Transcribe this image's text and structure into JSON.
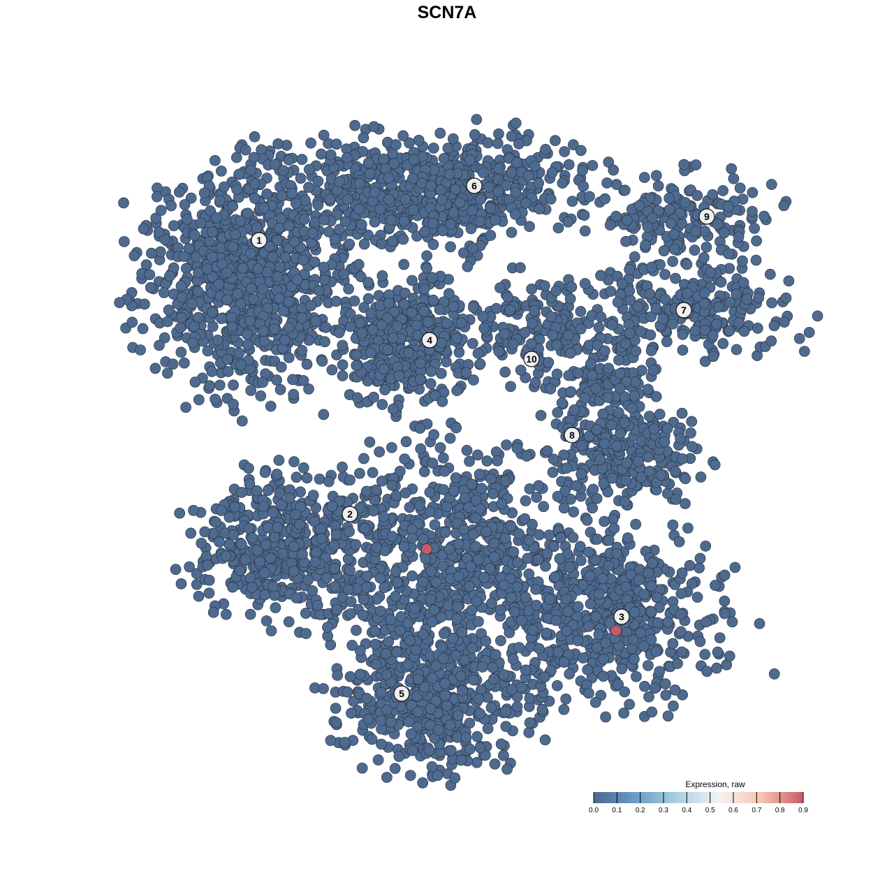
{
  "chart_data": {
    "type": "scatter",
    "title": "SCN7A",
    "xlabel": "",
    "ylabel": "",
    "grid": false,
    "axes_visible": false,
    "legend": {
      "title": "Expression, raw",
      "placement": "bottom-right",
      "range": [
        0,
        0.9
      ],
      "ticks": [
        "0.0",
        "0.1",
        "0.2",
        "0.3",
        "0.4",
        "0.5",
        "0.6",
        "0.7",
        "0.8",
        "0.9"
      ],
      "colors": [
        "#4a6890",
        "#6a9cc8",
        "#a9d0e2",
        "#f4f4f4",
        "#f6c5ad",
        "#c65a68"
      ]
    },
    "point_color_default": "#4e6a8f",
    "cluster_blobs": [
      {
        "cluster": "1",
        "center": [
          -29,
          24
        ],
        "sd": [
          7,
          8
        ],
        "n": 900,
        "expression": 0
      },
      {
        "cluster": "6",
        "center": [
          -2,
          37
        ],
        "sd": [
          11,
          4
        ],
        "n": 700,
        "expression": 0
      },
      {
        "cluster": "4",
        "center": [
          -6,
          15
        ],
        "sd": [
          4.5,
          4.5
        ],
        "n": 420,
        "expression": 0
      },
      {
        "cluster": "10",
        "center": [
          12,
          17
        ],
        "sd": [
          4,
          3.5
        ],
        "n": 150,
        "expression": 0
      },
      {
        "cluster": "9",
        "center": [
          34,
          33
        ],
        "sd": [
          6,
          3
        ],
        "n": 150,
        "expression": 0
      },
      {
        "cluster": "7",
        "center": [
          34,
          20
        ],
        "sd": [
          8,
          3.5
        ],
        "n": 250,
        "expression": 0
      },
      {
        "cluster": "8",
        "center": [
          23,
          4
        ],
        "sd": [
          4,
          6
        ],
        "n": 250,
        "expression": 0
      },
      {
        "cluster": "8",
        "center": [
          29,
          -1.5
        ],
        "sd": [
          4,
          3
        ],
        "n": 130,
        "expression": 0
      },
      {
        "cluster": "2",
        "center": [
          -24,
          -14
        ],
        "sd": [
          6,
          5
        ],
        "n": 420,
        "expression": 0
      },
      {
        "cluster": "5",
        "center": [
          -2,
          -36
        ],
        "sd": [
          7,
          5
        ],
        "n": 520,
        "expression": 0
      },
      {
        "cluster": "5",
        "center": [
          1,
          -16
        ],
        "sd": [
          10,
          8
        ],
        "n": 800,
        "expression": 0
      },
      {
        "cluster": "3",
        "center": [
          25,
          -24
        ],
        "sd": [
          7,
          6
        ],
        "n": 450,
        "expression": 0
      }
    ],
    "expressing_points": [
      {
        "x": -2.9,
        "y": -14.6,
        "value": 0.9
      },
      {
        "x": 24.2,
        "y": -26.3,
        "value": 0.9
      }
    ],
    "cluster_labels": [
      {
        "label": "1",
        "x": -26.9,
        "y": 29.6
      },
      {
        "label": "6",
        "x": 3.9,
        "y": 37.4
      },
      {
        "label": "4",
        "x": -2.5,
        "y": 15.3
      },
      {
        "label": "10",
        "x": 12.1,
        "y": 12.6
      },
      {
        "label": "9",
        "x": 37.2,
        "y": 33.0
      },
      {
        "label": "7",
        "x": 33.9,
        "y": 19.6
      },
      {
        "label": "8",
        "x": 17.9,
        "y": 1.7
      },
      {
        "label": "2",
        "x": -13.9,
        "y": -9.6
      },
      {
        "label": "3",
        "x": 25.0,
        "y": -24.3
      },
      {
        "label": "5",
        "x": -6.5,
        "y": -35.3
      }
    ]
  }
}
